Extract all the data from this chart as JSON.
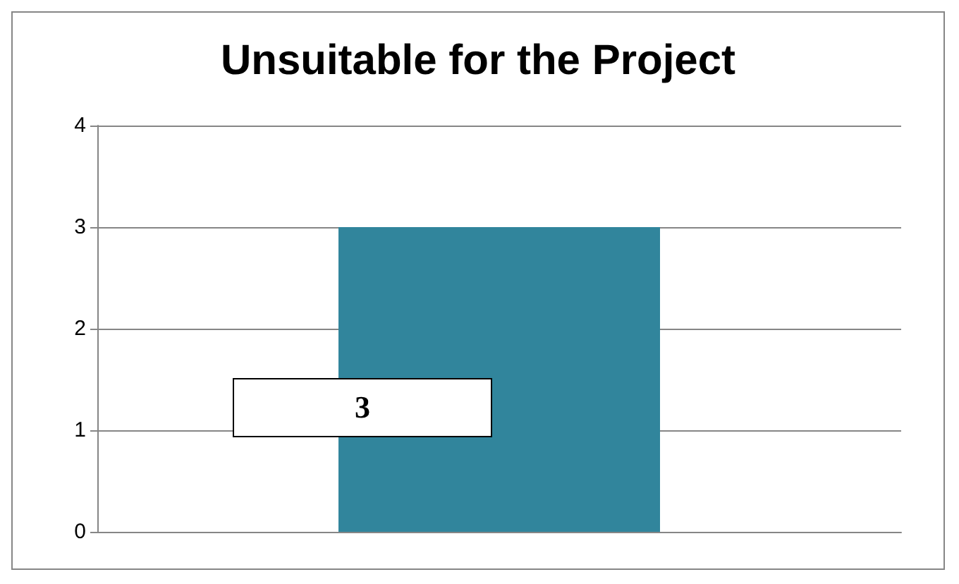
{
  "chart_data": {
    "type": "bar",
    "title": "Unsuitable for the Project",
    "categories": [
      null
    ],
    "values": [
      3
    ],
    "color": "#31859c",
    "ylim": [
      0,
      4
    ],
    "yticks": [
      0,
      1,
      2,
      3,
      4
    ],
    "grid": true,
    "data_labels": true
  }
}
